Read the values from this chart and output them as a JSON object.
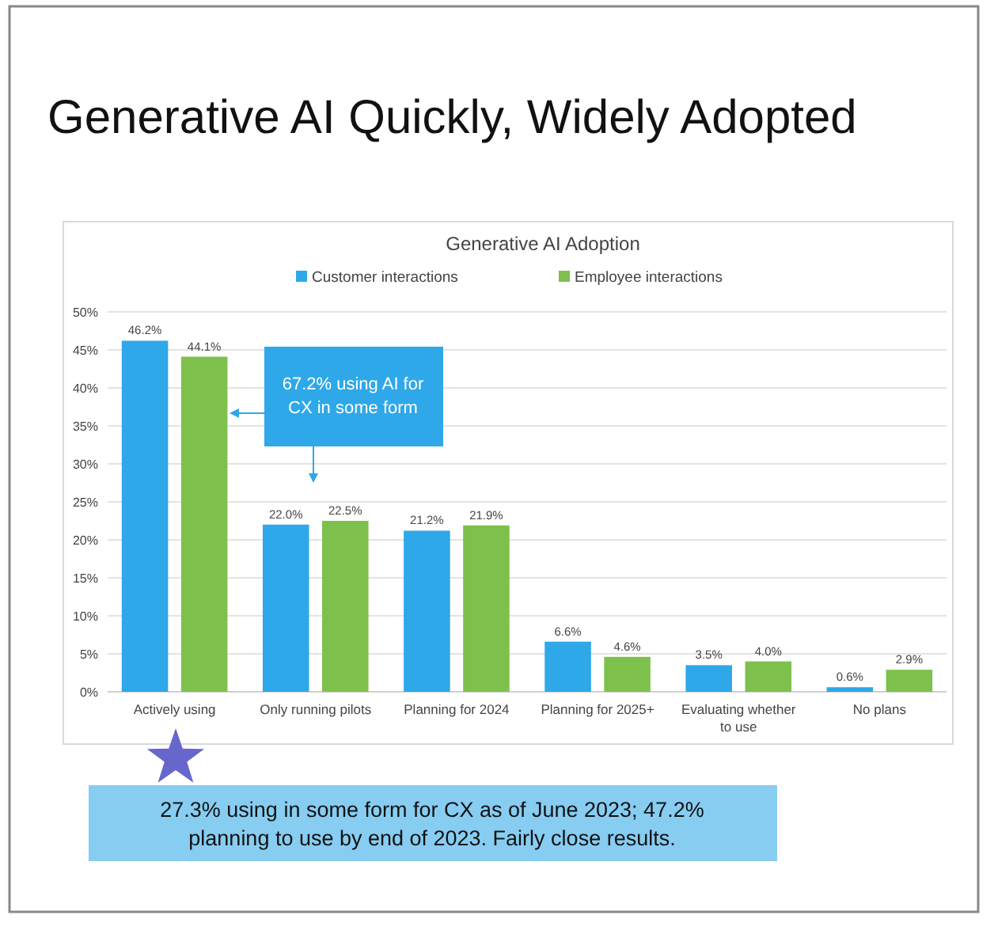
{
  "chart_data": {
    "type": "bar",
    "title": "Generative AI Quickly, Widely Adopted",
    "subtitle": "Generative AI Adoption",
    "categories": [
      "Actively using",
      "Only running pilots",
      "Planning for 2024",
      "Planning for 2025+",
      "Evaluating whether to use",
      "No plans"
    ],
    "series": [
      {
        "name": "Customer interactions",
        "color": "#2ea8e8",
        "values": [
          46.2,
          22.0,
          21.2,
          6.6,
          3.5,
          0.6
        ]
      },
      {
        "name": "Employee interactions",
        "color": "#7dc14c",
        "values": [
          44.1,
          22.5,
          21.9,
          4.6,
          4.0,
          2.9
        ]
      }
    ],
    "value_labels": [
      [
        "46.2%",
        "22.0%",
        "21.2%",
        "6.6%",
        "3.5%",
        "0.6%"
      ],
      [
        "44.1%",
        "22.5%",
        "21.9%",
        "4.6%",
        "4.0%",
        "2.9%"
      ]
    ],
    "ylim": [
      0,
      50
    ],
    "yticks": [
      {
        "value": 0,
        "label": "0%"
      },
      {
        "value": 5,
        "label": "5%"
      },
      {
        "value": 10,
        "label": "10%"
      },
      {
        "value": 15,
        "label": "15%"
      },
      {
        "value": 20,
        "label": "20%"
      },
      {
        "value": 25,
        "label": "25%"
      },
      {
        "value": 30,
        "label": "30%"
      },
      {
        "value": 35,
        "label": "35%"
      },
      {
        "value": 40,
        "label": "40%"
      },
      {
        "value": 45,
        "label": "45%"
      },
      {
        "value": 50,
        "label": "50%"
      }
    ],
    "grid": "y",
    "legend": "top",
    "annotations": [
      "67.2% using AI for CX in some form",
      "27.3% using in some form for CX as of June 2023; 47.2% planning to use by end of 2023. Fairly close results."
    ]
  }
}
